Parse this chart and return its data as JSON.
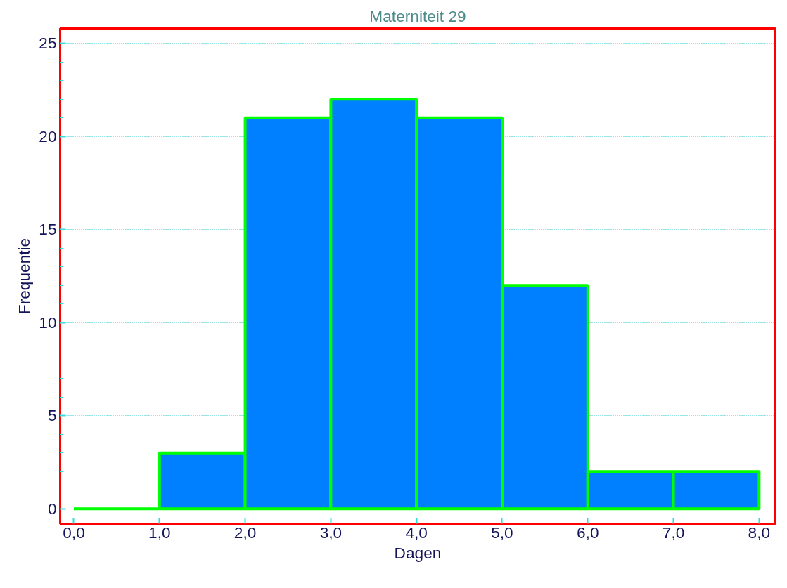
{
  "chart_data": {
    "type": "histogram",
    "title": "Materniteit 29",
    "xlabel": "Dagen",
    "ylabel": "Frequentie",
    "bins": [
      0,
      1,
      2,
      3,
      4,
      5,
      6,
      7,
      8
    ],
    "values": [
      0,
      3,
      21,
      22,
      21,
      12,
      2,
      2
    ],
    "colors": [
      "#00ff00",
      "#0080ff",
      "#0080ff",
      "#0080ff",
      "#0080ff",
      "#0080ff",
      "#0080ff",
      "#0080ff"
    ],
    "xlim": [
      -0.16,
      8.19
    ],
    "ylim": [
      -0.8,
      25.8
    ],
    "xticks": [
      {
        "value": 0,
        "label": "0,0"
      },
      {
        "value": 1,
        "label": "1,0"
      },
      {
        "value": 2,
        "label": "2,0"
      },
      {
        "value": 3,
        "label": "3,0"
      },
      {
        "value": 4,
        "label": "4,0"
      },
      {
        "value": 5,
        "label": "5,0"
      },
      {
        "value": 6,
        "label": "6,0"
      },
      {
        "value": 7,
        "label": "7,0"
      },
      {
        "value": 8,
        "label": "8,0"
      }
    ],
    "yticks": [
      0,
      5,
      10,
      15,
      20,
      25
    ],
    "grid": "y"
  }
}
